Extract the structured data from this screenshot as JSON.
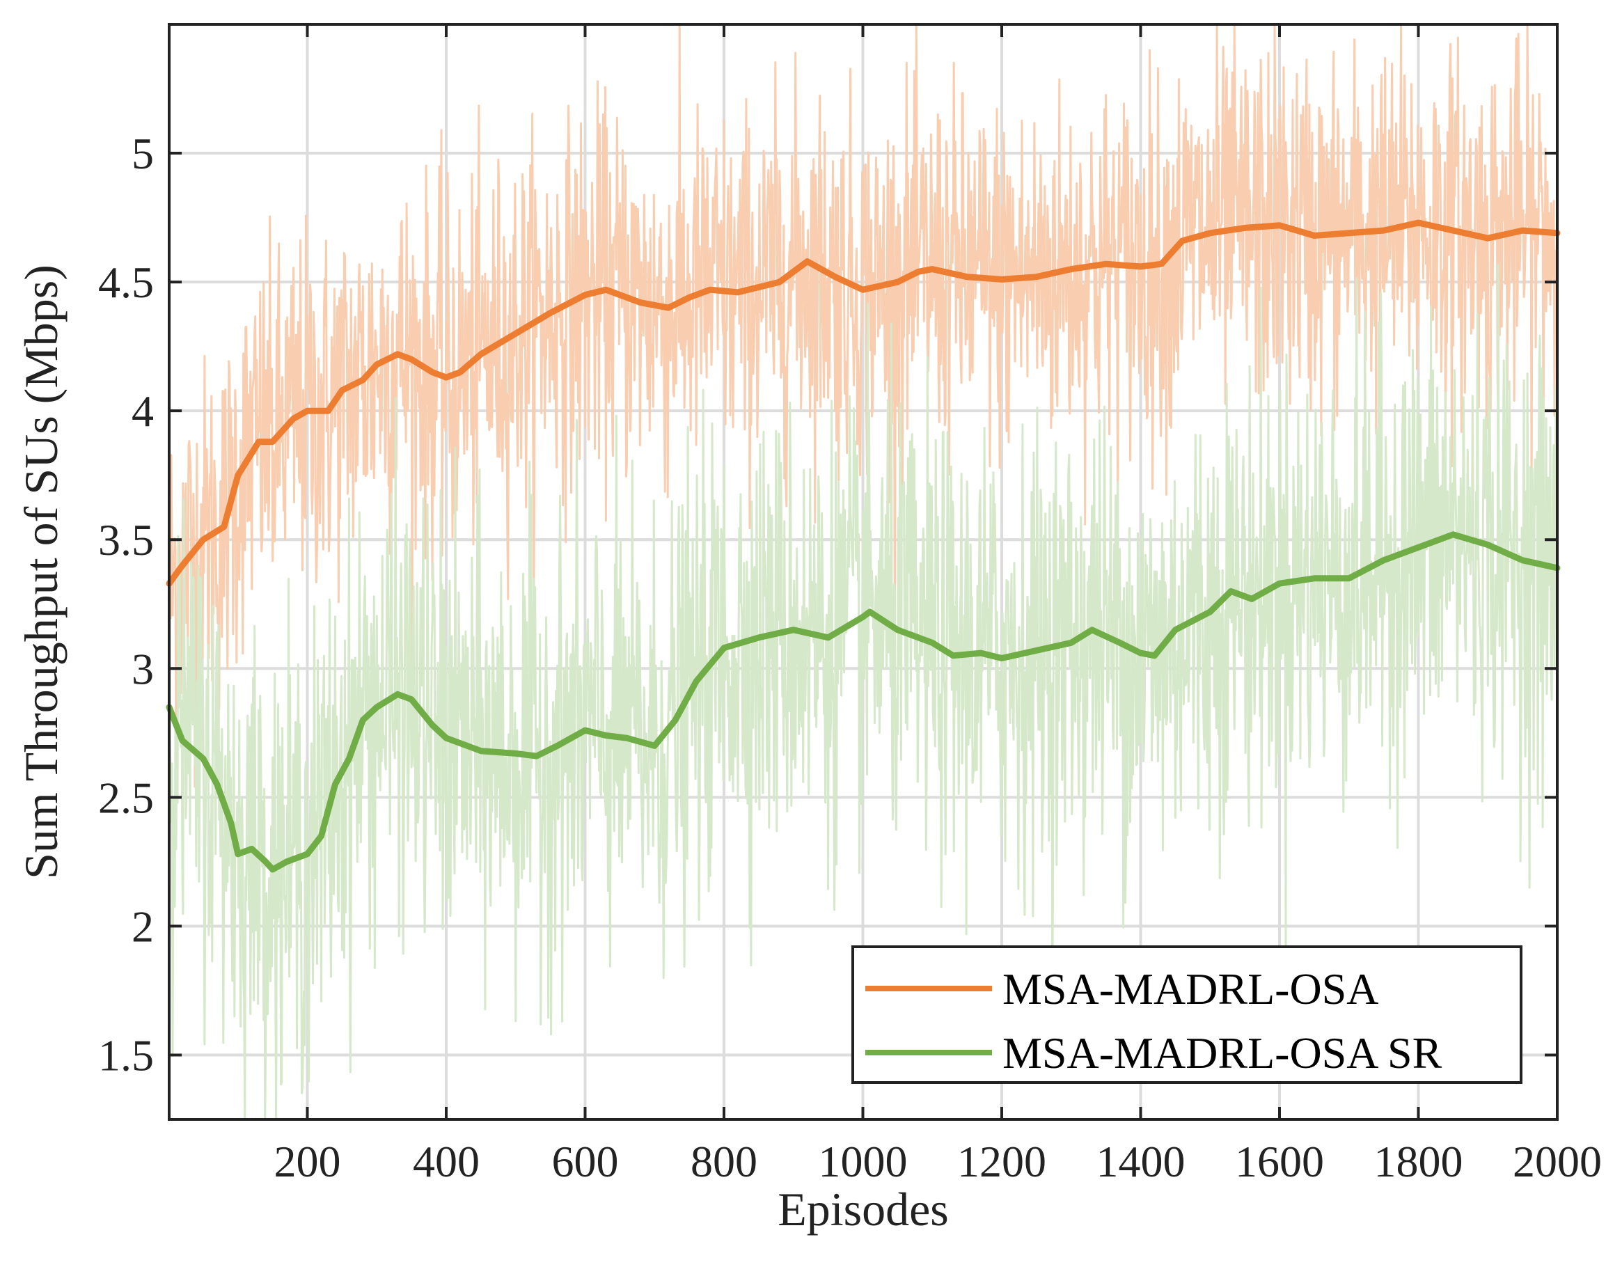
{
  "chart_data": {
    "type": "line",
    "xlabel": "Episodes",
    "ylabel": "Sum Throughput of SUs (Mbps)",
    "xlim": [
      1,
      2000
    ],
    "ylim": [
      1.25,
      5.5
    ],
    "xticks": [
      200,
      400,
      600,
      800,
      1000,
      1200,
      1400,
      1600,
      1800,
      2000
    ],
    "yticks": [
      1.5,
      2,
      2.5,
      3,
      3.5,
      4,
      4.5,
      5
    ],
    "xtick_labels": [
      "200",
      "400",
      "600",
      "800",
      "1000",
      "1200",
      "1400",
      "1600",
      "1800",
      "2000"
    ],
    "ytick_labels": [
      "1.5",
      "2",
      "2.5",
      "3",
      "3.5",
      "4",
      "4.5",
      "5"
    ],
    "grid": true,
    "legend_position": "bottom-right",
    "series": [
      {
        "name": "MSA-MADRL-OSA",
        "color": "#ED7D31",
        "raw_color": "#F9CDB0",
        "raw_spread": 0.35,
        "x": [
          1,
          20,
          50,
          80,
          100,
          130,
          150,
          180,
          200,
          230,
          250,
          280,
          300,
          330,
          350,
          380,
          400,
          420,
          450,
          500,
          550,
          600,
          630,
          680,
          720,
          750,
          780,
          820,
          850,
          880,
          920,
          960,
          1000,
          1050,
          1080,
          1100,
          1150,
          1200,
          1250,
          1300,
          1350,
          1400,
          1430,
          1460,
          1500,
          1550,
          1600,
          1650,
          1700,
          1750,
          1800,
          1850,
          1900,
          1950,
          2000
        ],
        "values": [
          3.33,
          3.4,
          3.5,
          3.55,
          3.75,
          3.88,
          3.88,
          3.97,
          4.0,
          4.0,
          4.08,
          4.12,
          4.18,
          4.22,
          4.2,
          4.15,
          4.13,
          4.15,
          4.22,
          4.3,
          4.38,
          4.45,
          4.47,
          4.42,
          4.4,
          4.44,
          4.47,
          4.46,
          4.48,
          4.5,
          4.58,
          4.52,
          4.47,
          4.5,
          4.54,
          4.55,
          4.52,
          4.51,
          4.52,
          4.55,
          4.57,
          4.56,
          4.57,
          4.66,
          4.69,
          4.71,
          4.72,
          4.68,
          4.69,
          4.7,
          4.73,
          4.7,
          4.67,
          4.7,
          4.69
        ]
      },
      {
        "name": "MSA-MADRL-OSA SR",
        "color": "#70AD47",
        "raw_color": "#D5E8C9",
        "raw_spread": 0.42,
        "x": [
          1,
          20,
          50,
          70,
          90,
          100,
          120,
          140,
          150,
          170,
          200,
          220,
          240,
          260,
          280,
          300,
          330,
          350,
          380,
          400,
          450,
          500,
          530,
          560,
          600,
          630,
          660,
          700,
          730,
          760,
          800,
          850,
          900,
          950,
          1000,
          1010,
          1050,
          1100,
          1130,
          1170,
          1200,
          1250,
          1300,
          1330,
          1370,
          1400,
          1420,
          1450,
          1500,
          1530,
          1560,
          1600,
          1650,
          1700,
          1750,
          1800,
          1850,
          1900,
          1950,
          2000
        ],
        "values": [
          2.85,
          2.72,
          2.65,
          2.55,
          2.4,
          2.28,
          2.3,
          2.25,
          2.22,
          2.25,
          2.28,
          2.35,
          2.55,
          2.65,
          2.8,
          2.85,
          2.9,
          2.88,
          2.78,
          2.73,
          2.68,
          2.67,
          2.66,
          2.7,
          2.76,
          2.74,
          2.73,
          2.7,
          2.8,
          2.95,
          3.08,
          3.12,
          3.15,
          3.12,
          3.2,
          3.22,
          3.15,
          3.1,
          3.05,
          3.06,
          3.04,
          3.07,
          3.1,
          3.15,
          3.1,
          3.06,
          3.05,
          3.15,
          3.22,
          3.3,
          3.27,
          3.33,
          3.35,
          3.35,
          3.42,
          3.47,
          3.52,
          3.48,
          3.42,
          3.39
        ]
      }
    ]
  }
}
